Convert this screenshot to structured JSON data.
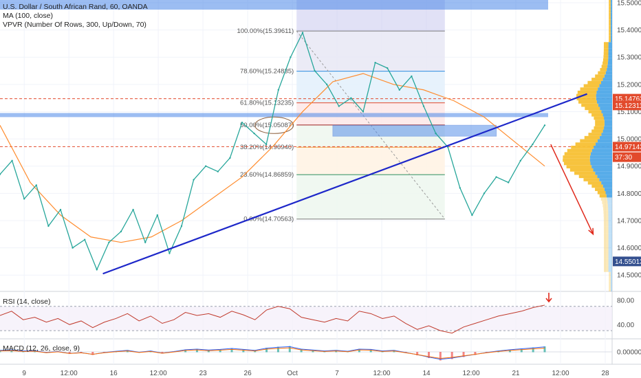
{
  "header": {
    "symbol_line": "U.S. Dollar / South African Rand, 60, OANDA",
    "ma_line": "MA (100, close)",
    "vpvr_line": "VPVR (Number Of Rows, 300, Up/Down, 70)"
  },
  "chart_data": [
    {
      "type": "line",
      "name": "price",
      "candles_drawn_as_line": true,
      "x_tick_labels": [
        "9",
        "12:00",
        "16",
        "12:00",
        "23",
        "26",
        "Oct",
        "7",
        "12:00",
        "14",
        "12:00",
        "21",
        "12:00",
        "28"
      ],
      "y_tick_labels": [
        "15.50000",
        "15.40000",
        "15.30000",
        "15.20000",
        "15.10000",
        "15.00000",
        "14.90000",
        "14.80000",
        "14.70000",
        "14.60000",
        "14.50000"
      ],
      "ylim": [
        14.44,
        15.51
      ],
      "x_extent": [
        0,
        100
      ],
      "price": {
        "x": [
          0,
          2,
          4,
          6,
          8,
          10,
          12,
          14,
          16,
          18,
          20,
          22,
          24,
          26,
          28,
          30,
          32,
          34,
          36,
          38,
          40,
          42,
          44,
          46,
          48,
          50,
          52,
          54,
          56,
          58,
          60,
          62,
          64,
          66,
          68,
          70,
          72
        ],
        "y": [
          14.87,
          14.92,
          14.78,
          14.83,
          14.68,
          14.74,
          14.6,
          14.63,
          14.52,
          14.62,
          14.66,
          14.74,
          14.62,
          14.72,
          14.58,
          14.68,
          14.85,
          14.9,
          14.88,
          14.93,
          15.06,
          15.02,
          14.98,
          15.18,
          15.3,
          15.39,
          15.25,
          15.2,
          15.12,
          15.15,
          15.1,
          15.28,
          15.26,
          15.18,
          15.23,
          15.12,
          15.02
        ]
      },
      "price_after_drop": {
        "x": [
          72,
          74,
          76,
          78,
          80,
          82,
          84,
          86,
          88,
          90
        ],
        "y": [
          15.02,
          14.97,
          14.82,
          14.72,
          14.8,
          14.86,
          14.84,
          14.92,
          14.98,
          15.05
        ]
      },
      "ma_100": {
        "x": [
          0,
          5,
          10,
          15,
          20,
          25,
          30,
          35,
          40,
          45,
          50,
          55,
          60,
          65,
          70,
          75,
          80,
          85,
          90
        ],
        "y": [
          15.05,
          14.84,
          14.72,
          14.64,
          14.62,
          14.64,
          14.7,
          14.78,
          14.86,
          14.97,
          15.1,
          15.21,
          15.24,
          15.2,
          15.18,
          15.14,
          15.08,
          14.99,
          14.9
        ]
      },
      "trendline": {
        "x": [
          17,
          97
        ],
        "y": [
          14.505,
          15.165
        ]
      },
      "forecast_arrow": {
        "x": [
          91,
          98
        ],
        "y": [
          14.98,
          14.65
        ]
      },
      "fib_levels": [
        {
          "label": "100.00%(15.39611)",
          "value": 15.39611
        },
        {
          "label": "78.60%(15.24835)",
          "value": 15.24835
        },
        {
          "label": "61.80%(15.13235)",
          "value": 15.13235
        },
        {
          "label": "50.00%(15.05087)",
          "value": 15.05087
        },
        {
          "label": "38.20%(14.96940)",
          "value": 14.9694
        },
        {
          "label": "23.60%(14.86859)",
          "value": 14.86859
        },
        {
          "label": "0.00%(14.70563)",
          "value": 14.70563
        }
      ],
      "resistance_zone": [
        15.08,
        15.095
      ],
      "retest_zone": [
        15.01,
        15.05
      ],
      "price_labels": [
        {
          "text": "15.14762",
          "value": 15.14762,
          "color": "#e24a2c"
        },
        {
          "text": "15.12311",
          "value": 15.12311,
          "color": "#e24a2c"
        },
        {
          "text": "14.97143",
          "value": 14.97143,
          "color": "#e24a2c"
        },
        {
          "text": "37:30",
          "value": 14.933,
          "color": "#e24a2c"
        },
        {
          "text": "14.55013",
          "value": 14.55013,
          "color": "#34508f"
        }
      ],
      "dashed_lines": [
        15.14762,
        14.97143
      ]
    },
    {
      "type": "line",
      "name": "RSI (14, close)",
      "y_tick_labels": [
        "80.00",
        "40.00"
      ],
      "ylim": [
        20,
        90
      ],
      "levels": [
        70,
        30
      ],
      "signal_arrow": true,
      "values": [
        55,
        62,
        48,
        52,
        44,
        50,
        40,
        46,
        35,
        44,
        50,
        58,
        46,
        54,
        42,
        48,
        60,
        55,
        58,
        52,
        62,
        56,
        48,
        64,
        70,
        66,
        52,
        48,
        44,
        50,
        46,
        62,
        58,
        50,
        54,
        42,
        32,
        38,
        30,
        26,
        36,
        42,
        48,
        54,
        58,
        62,
        68,
        72
      ]
    },
    {
      "type": "line",
      "name": "MACD (12, 26, close, 9)",
      "y_tick_labels": [
        "0.00000"
      ],
      "ylim": [
        -0.06,
        0.06
      ],
      "values": [
        0.01,
        0.012,
        0.006,
        0.008,
        -0.004,
        0.003,
        -0.01,
        -0.005,
        -0.016,
        -0.004,
        0.004,
        0.01,
        -0.002,
        0.006,
        -0.008,
        0.002,
        0.014,
        0.018,
        0.012,
        0.016,
        0.022,
        0.016,
        0.01,
        0.024,
        0.03,
        0.034,
        0.018,
        0.012,
        0.006,
        0.01,
        0.004,
        0.018,
        0.016,
        0.006,
        0.01,
        -0.004,
        -0.018,
        -0.034,
        -0.048,
        -0.04,
        -0.028,
        -0.016,
        -0.004,
        0.006,
        0.014,
        0.02,
        0.026,
        0.032
      ]
    }
  ],
  "colors": {
    "price": "#26a69a",
    "ma": "#ff8c2e",
    "trendline": "#1d27c9",
    "arrow": "#e0291b",
    "zone": "#4a86e8",
    "rsi": "#c0392b",
    "macd": "#2962ff",
    "macd_signal": "#ff6d00",
    "vpvr_up": "#f7c033",
    "vpvr_down": "#4ea8e8"
  }
}
